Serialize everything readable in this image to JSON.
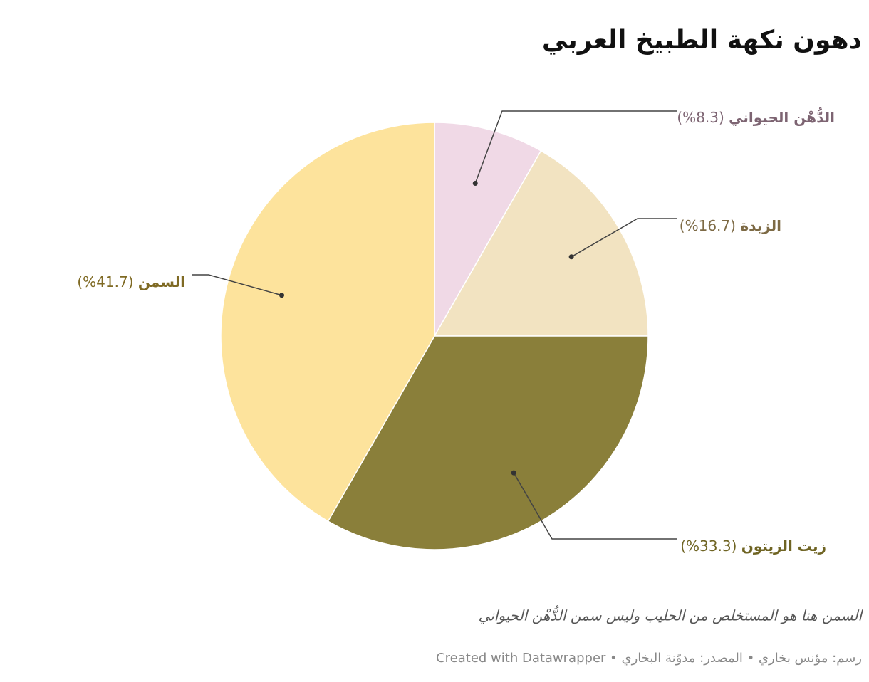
{
  "chart_data": {
    "type": "pie",
    "title": "دهون نكهة الطبيخ العربي",
    "categories": [
      "الدُّهْن الحيواني",
      "الزبدة",
      "زيت الزيتون",
      "السمن"
    ],
    "values": [
      8.3,
      16.7,
      33.3,
      41.7
    ],
    "value_labels": [
      "(8.3%)",
      "(16.7%)",
      "(33.3%)",
      "(41.7%)"
    ],
    "colors": [
      "#f0d9e6",
      "#f2e3c1",
      "#8a7f3a",
      "#fde39c"
    ],
    "label_colors": [
      "#7d6472",
      "#7d6a45",
      "#6f6423",
      "#7f6a24"
    ],
    "note": "السمن هنا هو المستخلص من الحليب وليس سمن الدُّهْن الحيواني",
    "footer": "رسم: مؤنس بخاري • المصدر: مدوّنة البخاري • Created with Datawrapper"
  }
}
